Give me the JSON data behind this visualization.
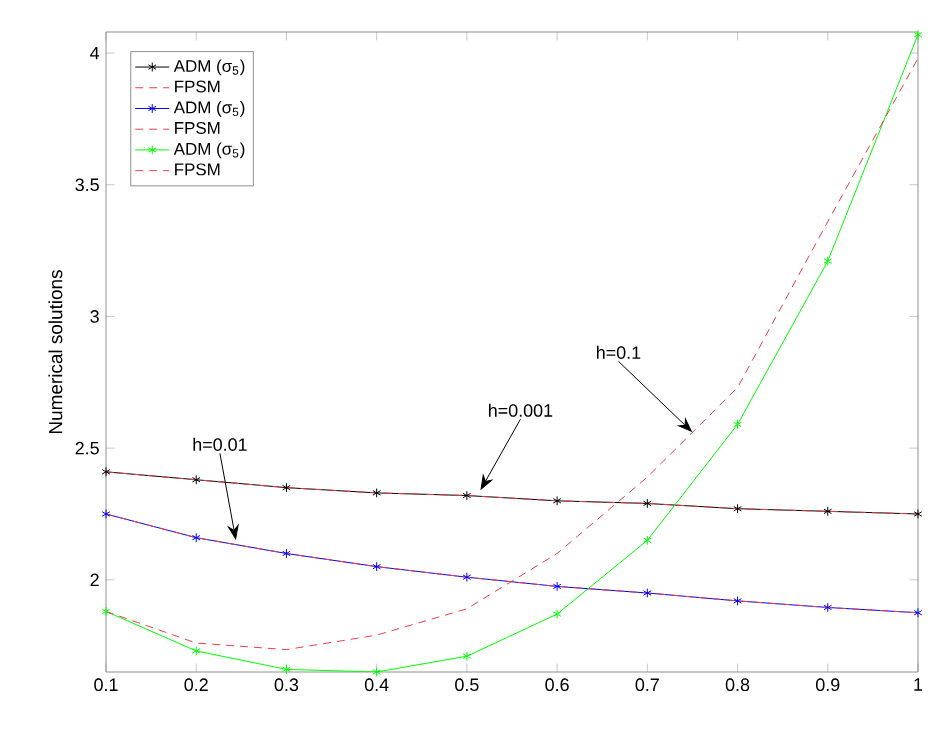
{
  "chart_data": {
    "type": "line",
    "ylabel": "Numerical solutions",
    "x": [
      0.1,
      0.2,
      0.3,
      0.4,
      0.5,
      0.6,
      0.7,
      0.8,
      0.9,
      1
    ],
    "series": [
      {
        "name": "ADM (σ$_{5}$)",
        "color": "#000000",
        "marker": "cross",
        "line_style": "solid",
        "values": [
          2.41,
          2.38,
          2.35,
          2.33,
          2.32,
          2.3,
          2.29,
          2.27,
          2.26,
          2.25
        ]
      },
      {
        "name": "FPSM",
        "color": "#e8404a",
        "marker": "none",
        "line_style": "dashed",
        "values": [
          2.41,
          2.38,
          2.35,
          2.33,
          2.32,
          2.3,
          2.29,
          2.27,
          2.26,
          2.25
        ]
      },
      {
        "name": "ADM (σ$_{5}$)",
        "color": "#0000ff",
        "marker": "cross",
        "line_style": "solid",
        "values": [
          2.25,
          2.16,
          2.1,
          2.05,
          2.01,
          1.975,
          1.95,
          1.92,
          1.895,
          1.875
        ]
      },
      {
        "name": "FPSM",
        "color": "#e8404a",
        "marker": "none",
        "line_style": "dashed",
        "values": [
          2.25,
          2.16,
          2.1,
          2.05,
          2.01,
          1.975,
          1.95,
          1.92,
          1.895,
          1.875
        ]
      },
      {
        "name": "ADM (σ$_{5}$)",
        "color": "#00ff00",
        "marker": "cross",
        "line_style": "solid",
        "values": [
          1.88,
          1.73,
          1.66,
          1.65,
          1.71,
          1.87,
          2.15,
          2.59,
          3.21,
          4.07
        ]
      },
      {
        "name": "FPSM",
        "color": "#e8404a",
        "marker": "none",
        "line_style": "dashed",
        "values": [
          1.88,
          1.76,
          1.735,
          1.79,
          1.89,
          2.1,
          2.39,
          2.73,
          3.36,
          3.98
        ]
      }
    ],
    "xlim": [
      0.1,
      1
    ],
    "ylim": [
      1.65,
      4.08
    ],
    "xticks": [
      0.1,
      0.2,
      0.3,
      0.4,
      0.5,
      0.6,
      0.7,
      0.8,
      0.9,
      1
    ],
    "yticks": [
      2,
      2.5,
      3,
      3.5,
      4
    ],
    "grid": false,
    "legend": "top left",
    "annotations": [
      {
        "text": "h=0.01",
        "x": 0.244,
        "y": 2.15
      },
      {
        "text": "h=0.001",
        "x": 0.515,
        "y": 2.34
      },
      {
        "text": "h=0.1",
        "x": 0.75,
        "y": 2.56
      }
    ]
  }
}
